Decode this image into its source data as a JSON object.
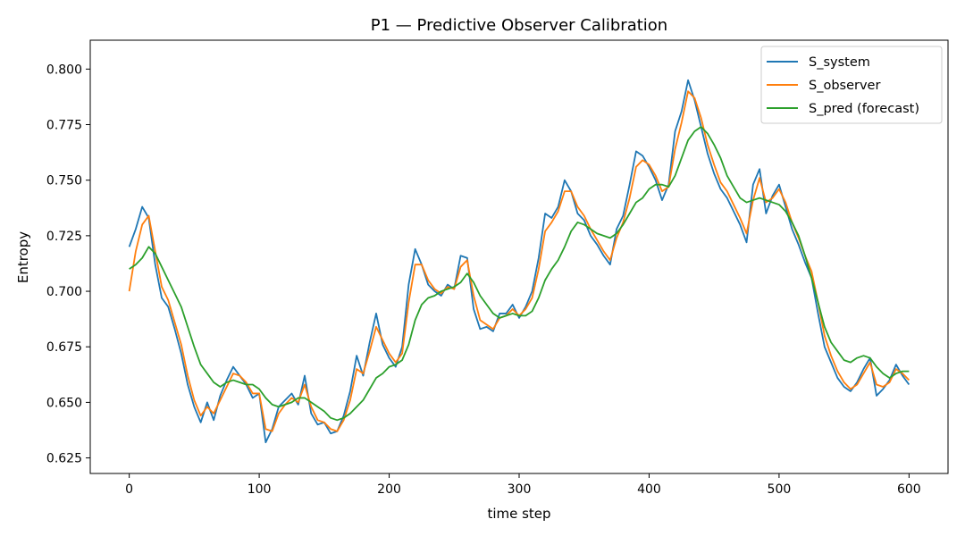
{
  "chart_data": {
    "type": "line",
    "title": "P1 — Predictive Observer Calibration",
    "xlabel": "time step",
    "ylabel": "Entropy",
    "xlim": [
      -30,
      630
    ],
    "ylim": [
      0.618,
      0.813
    ],
    "xticks": [
      0,
      100,
      200,
      300,
      400,
      500,
      600
    ],
    "yticks": [
      0.625,
      0.65,
      0.675,
      0.7,
      0.725,
      0.75,
      0.775,
      0.8
    ],
    "grid": false,
    "legend_position": "top-right",
    "series": [
      {
        "name": "S_system",
        "color": "#1f77b4",
        "x": [
          0,
          5,
          10,
          15,
          20,
          25,
          30,
          35,
          40,
          45,
          50,
          55,
          60,
          65,
          70,
          75,
          80,
          85,
          90,
          95,
          100,
          105,
          110,
          115,
          120,
          125,
          130,
          135,
          140,
          145,
          150,
          155,
          160,
          165,
          170,
          175,
          180,
          185,
          190,
          195,
          200,
          205,
          210,
          215,
          220,
          225,
          230,
          235,
          240,
          245,
          250,
          255,
          260,
          265,
          270,
          275,
          280,
          285,
          290,
          295,
          300,
          305,
          310,
          315,
          320,
          325,
          330,
          335,
          340,
          345,
          350,
          355,
          360,
          365,
          370,
          375,
          380,
          385,
          390,
          395,
          400,
          405,
          410,
          415,
          420,
          425,
          430,
          435,
          440,
          445,
          450,
          455,
          460,
          465,
          470,
          475,
          480,
          485,
          490,
          495,
          500,
          505,
          510,
          515,
          520,
          525,
          530,
          535,
          540,
          545,
          550,
          555,
          560,
          565,
          570,
          575,
          580,
          585,
          590,
          595,
          600
        ],
        "values": [
          0.72,
          0.728,
          0.738,
          0.733,
          0.712,
          0.697,
          0.693,
          0.683,
          0.672,
          0.658,
          0.648,
          0.641,
          0.65,
          0.642,
          0.653,
          0.66,
          0.666,
          0.662,
          0.658,
          0.652,
          0.654,
          0.632,
          0.638,
          0.648,
          0.651,
          0.654,
          0.649,
          0.662,
          0.645,
          0.64,
          0.641,
          0.636,
          0.637,
          0.644,
          0.655,
          0.671,
          0.662,
          0.677,
          0.69,
          0.676,
          0.67,
          0.666,
          0.675,
          0.703,
          0.719,
          0.712,
          0.703,
          0.7,
          0.698,
          0.703,
          0.701,
          0.716,
          0.715,
          0.692,
          0.683,
          0.684,
          0.682,
          0.69,
          0.69,
          0.694,
          0.688,
          0.693,
          0.7,
          0.715,
          0.735,
          0.733,
          0.738,
          0.75,
          0.745,
          0.735,
          0.732,
          0.725,
          0.721,
          0.716,
          0.712,
          0.728,
          0.734,
          0.748,
          0.763,
          0.761,
          0.756,
          0.75,
          0.741,
          0.748,
          0.772,
          0.781,
          0.795,
          0.786,
          0.774,
          0.762,
          0.753,
          0.746,
          0.742,
          0.736,
          0.73,
          0.722,
          0.748,
          0.755,
          0.735,
          0.743,
          0.748,
          0.738,
          0.728,
          0.721,
          0.713,
          0.706,
          0.69,
          0.675,
          0.668,
          0.661,
          0.657,
          0.655,
          0.659,
          0.665,
          0.67,
          0.653,
          0.656,
          0.66,
          0.667,
          0.662,
          0.658
        ]
      },
      {
        "name": "S_observer",
        "color": "#ff7f0e",
        "x": [
          0,
          5,
          10,
          15,
          20,
          25,
          30,
          35,
          40,
          45,
          50,
          55,
          60,
          65,
          70,
          75,
          80,
          85,
          90,
          95,
          100,
          105,
          110,
          115,
          120,
          125,
          130,
          135,
          140,
          145,
          150,
          155,
          160,
          165,
          170,
          175,
          180,
          185,
          190,
          195,
          200,
          205,
          210,
          215,
          220,
          225,
          230,
          235,
          240,
          245,
          250,
          255,
          260,
          265,
          270,
          275,
          280,
          285,
          290,
          295,
          300,
          305,
          310,
          315,
          320,
          325,
          330,
          335,
          340,
          345,
          350,
          355,
          360,
          365,
          370,
          375,
          380,
          385,
          390,
          395,
          400,
          405,
          410,
          415,
          420,
          425,
          430,
          435,
          440,
          445,
          450,
          455,
          460,
          465,
          470,
          475,
          480,
          485,
          490,
          495,
          500,
          505,
          510,
          515,
          520,
          525,
          530,
          535,
          540,
          545,
          550,
          555,
          560,
          565,
          570,
          575,
          580,
          585,
          590,
          595,
          600
        ],
        "values": [
          0.7,
          0.718,
          0.73,
          0.734,
          0.718,
          0.702,
          0.696,
          0.686,
          0.676,
          0.662,
          0.651,
          0.644,
          0.648,
          0.645,
          0.651,
          0.657,
          0.663,
          0.662,
          0.659,
          0.654,
          0.654,
          0.638,
          0.637,
          0.645,
          0.649,
          0.652,
          0.65,
          0.658,
          0.648,
          0.642,
          0.641,
          0.638,
          0.637,
          0.642,
          0.651,
          0.665,
          0.663,
          0.673,
          0.684,
          0.678,
          0.672,
          0.668,
          0.672,
          0.695,
          0.712,
          0.712,
          0.705,
          0.701,
          0.699,
          0.702,
          0.701,
          0.711,
          0.714,
          0.698,
          0.687,
          0.685,
          0.683,
          0.688,
          0.689,
          0.692,
          0.689,
          0.692,
          0.697,
          0.71,
          0.727,
          0.731,
          0.736,
          0.745,
          0.745,
          0.738,
          0.734,
          0.728,
          0.723,
          0.718,
          0.714,
          0.724,
          0.731,
          0.742,
          0.756,
          0.759,
          0.757,
          0.752,
          0.745,
          0.747,
          0.764,
          0.776,
          0.79,
          0.787,
          0.778,
          0.766,
          0.757,
          0.749,
          0.745,
          0.739,
          0.733,
          0.726,
          0.741,
          0.751,
          0.74,
          0.742,
          0.746,
          0.74,
          0.731,
          0.724,
          0.716,
          0.709,
          0.695,
          0.68,
          0.671,
          0.664,
          0.659,
          0.656,
          0.658,
          0.663,
          0.668,
          0.658,
          0.657,
          0.659,
          0.665,
          0.663,
          0.66
        ]
      },
      {
        "name": "S_pred (forecast)",
        "color": "#2ca02c",
        "x": [
          0,
          5,
          10,
          15,
          20,
          25,
          30,
          35,
          40,
          45,
          50,
          55,
          60,
          65,
          70,
          75,
          80,
          85,
          90,
          95,
          100,
          105,
          110,
          115,
          120,
          125,
          130,
          135,
          140,
          145,
          150,
          155,
          160,
          165,
          170,
          175,
          180,
          185,
          190,
          195,
          200,
          205,
          210,
          215,
          220,
          225,
          230,
          235,
          240,
          245,
          250,
          255,
          260,
          265,
          270,
          275,
          280,
          285,
          290,
          295,
          300,
          305,
          310,
          315,
          320,
          325,
          330,
          335,
          340,
          345,
          350,
          355,
          360,
          365,
          370,
          375,
          380,
          385,
          390,
          395,
          400,
          405,
          410,
          415,
          420,
          425,
          430,
          435,
          440,
          445,
          450,
          455,
          460,
          465,
          470,
          475,
          480,
          485,
          490,
          495,
          500,
          505,
          510,
          515,
          520,
          525,
          530,
          535,
          540,
          545,
          550,
          555,
          560,
          565,
          570,
          575,
          580,
          585,
          590,
          595,
          600
        ],
        "values": [
          0.71,
          0.712,
          0.715,
          0.72,
          0.717,
          0.711,
          0.705,
          0.699,
          0.693,
          0.684,
          0.675,
          0.667,
          0.663,
          0.659,
          0.657,
          0.659,
          0.66,
          0.659,
          0.658,
          0.658,
          0.656,
          0.652,
          0.649,
          0.648,
          0.649,
          0.65,
          0.652,
          0.652,
          0.65,
          0.648,
          0.646,
          0.643,
          0.642,
          0.643,
          0.645,
          0.648,
          0.651,
          0.656,
          0.661,
          0.663,
          0.666,
          0.667,
          0.669,
          0.676,
          0.687,
          0.694,
          0.697,
          0.698,
          0.7,
          0.701,
          0.702,
          0.704,
          0.708,
          0.704,
          0.698,
          0.694,
          0.69,
          0.688,
          0.689,
          0.69,
          0.689,
          0.689,
          0.691,
          0.697,
          0.705,
          0.71,
          0.714,
          0.72,
          0.727,
          0.731,
          0.73,
          0.728,
          0.726,
          0.725,
          0.724,
          0.726,
          0.73,
          0.735,
          0.74,
          0.742,
          0.746,
          0.748,
          0.748,
          0.747,
          0.752,
          0.76,
          0.768,
          0.772,
          0.774,
          0.771,
          0.766,
          0.76,
          0.752,
          0.747,
          0.742,
          0.74,
          0.741,
          0.742,
          0.741,
          0.74,
          0.739,
          0.736,
          0.731,
          0.725,
          0.716,
          0.706,
          0.695,
          0.684,
          0.677,
          0.673,
          0.669,
          0.668,
          0.67,
          0.671,
          0.67,
          0.666,
          0.663,
          0.661,
          0.663,
          0.664,
          0.664
        ]
      }
    ]
  }
}
